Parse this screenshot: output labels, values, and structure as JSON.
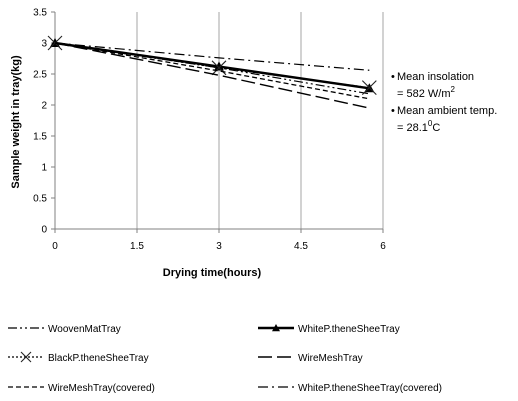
{
  "chart_data": {
    "type": "line",
    "title": "",
    "xlabel": "Drying time(hours)",
    "ylabel": "Sample weight in tray(kg)",
    "xlim": [
      0,
      6
    ],
    "ylim": [
      0,
      3.5
    ],
    "x_ticks": [
      "0",
      "1.5",
      "3",
      "4.5",
      "6"
    ],
    "y_ticks": [
      "0",
      "0.5",
      "1",
      "1.5",
      "2",
      "2.5",
      "3",
      "3.5"
    ],
    "grid": "vertical",
    "legend_position": "bottom",
    "series": [
      {
        "name": "WoovenMatTray",
        "style": "dash-dot-dot",
        "marker": "none",
        "x": [
          0,
          3,
          5.75
        ],
        "y": [
          3.0,
          2.6,
          2.18
        ]
      },
      {
        "name": "WhiteP.theneSheeTray",
        "style": "solid-thick",
        "marker": "triangle",
        "x": [
          0,
          3,
          5.75
        ],
        "y": [
          3.0,
          2.62,
          2.27
        ]
      },
      {
        "name": "BlackP.theneSheeTray",
        "style": "dotted",
        "marker": "x",
        "x": [
          0,
          3,
          5.75
        ],
        "y": [
          3.0,
          2.6,
          2.28
        ]
      },
      {
        "name": "WireMeshTray",
        "style": "long-dash",
        "marker": "none",
        "x": [
          0,
          3,
          5.75
        ],
        "y": [
          3.0,
          2.48,
          1.95
        ]
      },
      {
        "name": "WireMeshTray(covered)",
        "style": "short-dash",
        "marker": "none",
        "x": [
          0,
          3,
          5.75
        ],
        "y": [
          3.0,
          2.55,
          2.1
        ]
      },
      {
        "name": "WhiteP.theneSheeTray(covered)",
        "style": "dash-dot",
        "marker": "none",
        "x": [
          0,
          3,
          5.75
        ],
        "y": [
          3.0,
          2.76,
          2.56
        ]
      }
    ],
    "annotations": [
      {
        "bullet": "•",
        "label": "Mean insolation",
        "value": "= 582  W/m",
        "sup": "2"
      },
      {
        "bullet": "•",
        "label": "Mean ambient temp.",
        "value": "= 28.1",
        "sup": "0",
        "tail": "C"
      }
    ]
  }
}
